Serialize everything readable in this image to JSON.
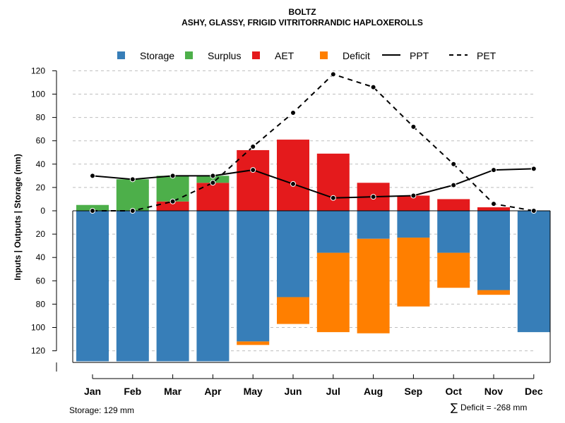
{
  "chart_data": {
    "type": "bar",
    "title": "BOLTZ",
    "subtitle": "ASHY, GLASSY, FRIGID VITRITORRANDIC HAPLOXEROLLS",
    "ylabel": "Inputs | Outputs | Storage     (mm)",
    "ylim": [
      -130,
      120
    ],
    "ytick_values": [
      120,
      100,
      80,
      60,
      40,
      20,
      0,
      -20,
      -40,
      -60,
      -80,
      -100,
      -120
    ],
    "ytick_labels": [
      "120",
      "100",
      "80",
      "60",
      "40",
      "20",
      "0",
      "20",
      "40",
      "60",
      "80",
      "100",
      "120"
    ],
    "grid": true,
    "legend_position": "top",
    "categories": [
      "Jan",
      "Feb",
      "Mar",
      "Apr",
      "May",
      "Jun",
      "Jul",
      "Aug",
      "Sep",
      "Oct",
      "Nov",
      "Dec"
    ],
    "series": [
      {
        "name": "Storage",
        "color": "#377eb8",
        "kind": "bar-below",
        "values": [
          129,
          129,
          129,
          129,
          112,
          74,
          36,
          24,
          23,
          36,
          68,
          104
        ]
      },
      {
        "name": "Surplus",
        "color": "#4daf4a",
        "kind": "bar-above-stacked",
        "values": [
          5,
          27,
          22,
          6,
          0,
          0,
          0,
          0,
          0,
          0,
          0,
          0
        ]
      },
      {
        "name": "AET",
        "color": "#e41a1c",
        "kind": "bar-above",
        "values": [
          0,
          0,
          8,
          24,
          52,
          61,
          49,
          24,
          13,
          10,
          3,
          0
        ]
      },
      {
        "name": "Deficit",
        "color": "#ff7f00",
        "kind": "bar-below-stacked",
        "values": [
          0,
          0,
          0,
          0,
          3,
          23,
          68,
          81,
          59,
          30,
          4,
          0
        ]
      },
      {
        "name": "PPT",
        "color": "#000000",
        "kind": "line-solid",
        "values": [
          30,
          27,
          30,
          30,
          35,
          23,
          11,
          12,
          13,
          22,
          35,
          36
        ]
      },
      {
        "name": "PET",
        "color": "#000000",
        "kind": "line-dashed",
        "values": [
          0,
          0,
          8,
          24,
          55,
          84,
          117,
          106,
          72,
          40,
          6,
          0
        ]
      }
    ],
    "annotations": {
      "storage": "Storage: 129 mm",
      "deficit_symbol": "∑",
      "deficit": "Deficit = -268 mm"
    }
  }
}
